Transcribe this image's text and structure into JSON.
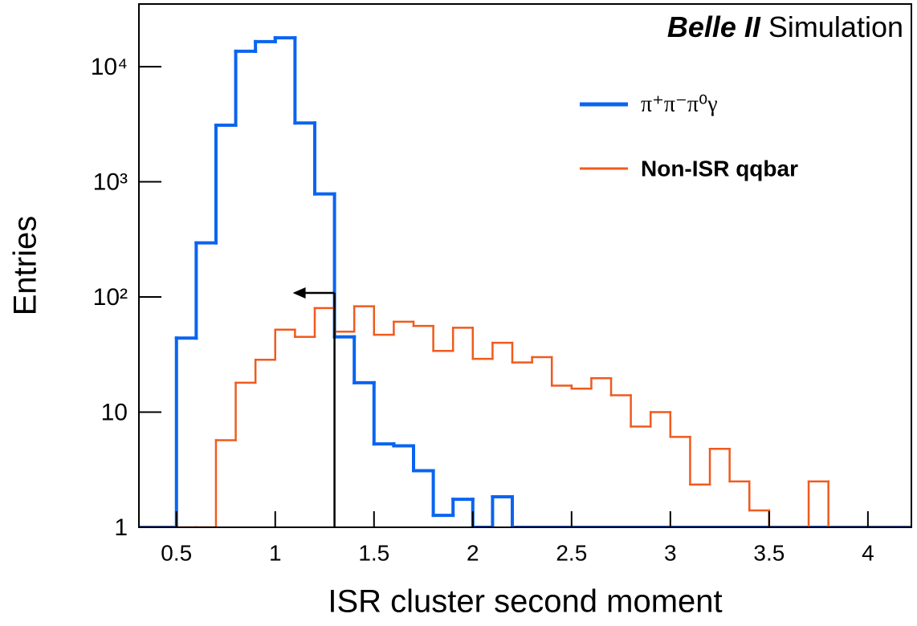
{
  "chart_data": {
    "type": "histogram",
    "title": [
      "Belle II",
      "Simulation"
    ],
    "xlabel": "ISR cluster second moment",
    "ylabel": "Entries",
    "log_y": true,
    "bins": [
      0.3,
      0.4,
      0.5,
      0.6,
      0.7,
      0.8,
      0.9,
      1.0,
      1.1,
      1.2,
      1.3,
      1.4,
      1.5,
      1.6,
      1.7,
      1.8,
      1.9,
      2.0,
      2.1,
      2.2,
      2.3,
      2.4,
      2.5,
      2.6,
      2.7,
      2.8,
      2.9,
      3.0,
      3.1,
      3.2,
      3.3,
      3.4,
      3.5,
      3.6,
      3.7,
      3.8,
      3.9,
      4.0,
      4.1,
      4.2,
      4.3
    ],
    "series": [
      {
        "name": "π⁺π⁻π⁰γ",
        "color": "#0a64f0",
        "bold": false,
        "values": [
          1,
          1,
          44,
          295,
          3100,
          13600,
          16500,
          17800,
          3240,
          785,
          45,
          18,
          5.3,
          5.1,
          3.1,
          1.27,
          1.75,
          1,
          1.84,
          1,
          1,
          1,
          1,
          1,
          1,
          1,
          1,
          1,
          1,
          1,
          1,
          1,
          1,
          1,
          1,
          1,
          1,
          1,
          1,
          1
        ]
      },
      {
        "name": "Non-ISR qqbar",
        "color": "#f05a1e",
        "bold": true,
        "values": [
          1,
          1,
          1,
          1,
          5.7,
          18,
          28.5,
          52,
          45,
          80,
          50,
          83,
          47,
          61,
          56,
          34,
          54,
          29,
          40,
          27,
          30,
          17,
          16,
          19.7,
          14,
          7.5,
          10,
          6.1,
          2.35,
          4.8,
          2.5,
          1.4,
          1,
          1,
          2.5,
          1,
          1,
          1,
          1,
          1
        ]
      }
    ],
    "cut": 1.3,
    "xlim": [
      0.31,
      4.22
    ],
    "ylim": [
      1,
      35000
    ],
    "xticks": [
      0.5,
      1,
      1.5,
      2,
      2.5,
      3,
      3.5,
      4
    ],
    "yticks": [
      1,
      10,
      {
        "value": 100,
        "label": "10²"
      },
      {
        "value": 1000,
        "label": "10³"
      },
      {
        "value": 10000,
        "label": "10⁴"
      }
    ]
  }
}
